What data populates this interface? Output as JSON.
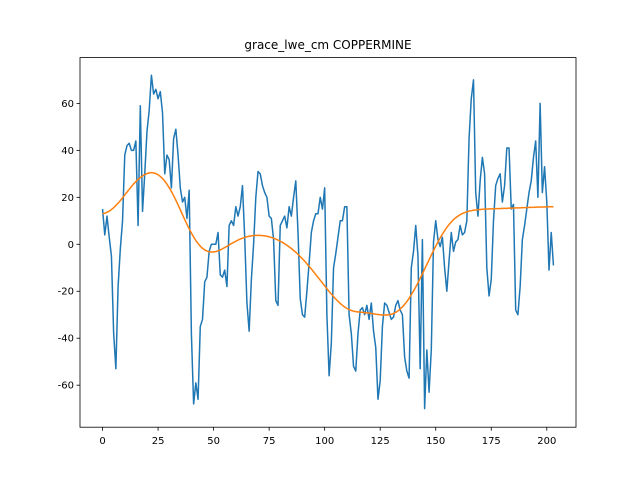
{
  "chart_data": {
    "type": "line",
    "title": "grace_lwe_cm COPPERMINE",
    "x": [
      0,
      1,
      2,
      3,
      4,
      5,
      6,
      7,
      8,
      9,
      10,
      11,
      12,
      13,
      14,
      15,
      16,
      17,
      18,
      19,
      20,
      21,
      22,
      23,
      24,
      25,
      26,
      27,
      28,
      29,
      30,
      31,
      32,
      33,
      34,
      35,
      36,
      37,
      38,
      39,
      40,
      41,
      42,
      43,
      44,
      45,
      46,
      47,
      48,
      49,
      50,
      51,
      52,
      53,
      54,
      55,
      56,
      57,
      58,
      59,
      60,
      61,
      62,
      63,
      64,
      65,
      66,
      67,
      68,
      69,
      70,
      71,
      72,
      73,
      74,
      75,
      76,
      77,
      78,
      79,
      80,
      81,
      82,
      83,
      84,
      85,
      86,
      87,
      88,
      89,
      90,
      91,
      92,
      93,
      94,
      95,
      96,
      97,
      98,
      99,
      100,
      101,
      102,
      103,
      104,
      105,
      106,
      107,
      108,
      109,
      110,
      111,
      112,
      113,
      114,
      115,
      116,
      117,
      118,
      119,
      120,
      121,
      122,
      123,
      124,
      125,
      126,
      127,
      128,
      129,
      130,
      131,
      132,
      133,
      134,
      135,
      136,
      137,
      138,
      139,
      140,
      141,
      142,
      143,
      144,
      145,
      146,
      147,
      148,
      149,
      150,
      151,
      152,
      153,
      154,
      155,
      156,
      157,
      158,
      159,
      160,
      161,
      162,
      163,
      164,
      165,
      166,
      167,
      168,
      169,
      170,
      171,
      172,
      173,
      174,
      175,
      176,
      177,
      178,
      179,
      180,
      181,
      182,
      183,
      184,
      185,
      186,
      187,
      188,
      189,
      190,
      191,
      192,
      193,
      194,
      195,
      196,
      197,
      198,
      199,
      200,
      201,
      202,
      203
    ],
    "series": [
      {
        "color": "#1f77b4",
        "values": [
          15,
          4,
          12,
          3,
          -5,
          -38,
          -53,
          -18,
          -2,
          10,
          38,
          42,
          43,
          40,
          40,
          44,
          8,
          59,
          14,
          30,
          48,
          57,
          72,
          64,
          66,
          62,
          65,
          56,
          30,
          38,
          36,
          24,
          45,
          49,
          38,
          24,
          18,
          20,
          11,
          23,
          -38,
          -68,
          -59,
          -66,
          -35,
          -32,
          -16,
          -14,
          -3,
          0,
          0,
          0,
          5,
          -13,
          -14,
          -11,
          -18,
          8,
          10,
          8,
          16,
          12,
          16,
          25,
          3,
          -25,
          -37,
          -15,
          0,
          20,
          31,
          30,
          25,
          22,
          20,
          12,
          11,
          2,
          -24,
          -26,
          8,
          10,
          12,
          7,
          16,
          12,
          20,
          27,
          5,
          -23,
          -30,
          -31,
          -20,
          -8,
          5,
          10,
          13,
          13,
          20,
          15,
          24,
          -30,
          -56,
          -42,
          -10,
          -4,
          3,
          10,
          10,
          16,
          16,
          -30,
          -38,
          -52,
          -54,
          -38,
          -28,
          -27,
          -30,
          -26,
          -32,
          -25,
          -37,
          -44,
          -66,
          -58,
          -35,
          -25,
          -26,
          -29,
          -32,
          -31,
          -26,
          -24,
          -28,
          -30,
          -48,
          -54,
          -57,
          -10,
          -3,
          8,
          -5,
          -53,
          2,
          -70,
          -45,
          -63,
          -45,
          1,
          10,
          2,
          -1,
          3,
          -10,
          -20,
          -7,
          5,
          -3,
          1,
          2,
          8,
          4,
          5,
          10,
          45,
          62,
          70,
          22,
          12,
          27,
          37,
          30,
          -10,
          -22,
          -15,
          10,
          25,
          28,
          30,
          18,
          25,
          41,
          41,
          15,
          17,
          -28,
          -30,
          -18,
          2,
          8,
          15,
          22,
          27,
          37,
          44,
          20,
          60,
          22,
          33,
          18,
          -11,
          5,
          -9
        ]
      },
      {
        "color": "#ff7f0e",
        "values": [
          13,
          13.2,
          13.6,
          14.1,
          14.8,
          15.6,
          16.5,
          17.5,
          18.6,
          19.8,
          21,
          22.2,
          23.4,
          24.6,
          25.7,
          26.7,
          27.6,
          28.4,
          29.1,
          29.7,
          30.1,
          30.4,
          30.5,
          30.4,
          30.1,
          29.6,
          28.9,
          28,
          26.9,
          25.6,
          24.1,
          22.5,
          20.7,
          18.8,
          16.8,
          14.7,
          12.6,
          10.5,
          8.5,
          6.6,
          4.8,
          3.1,
          1.6,
          0.3,
          -0.8,
          -1.7,
          -2.4,
          -2.9,
          -3.2,
          -3.3,
          -3.3,
          -3.1,
          -2.8,
          -2.4,
          -1.9,
          -1.4,
          -0.9,
          -0.3,
          0.3,
          0.8,
          1.3,
          1.8,
          2.2,
          2.6,
          2.9,
          3.2,
          3.4,
          3.6,
          3.7,
          3.8,
          3.8,
          3.8,
          3.7,
          3.6,
          3.4,
          3.2,
          2.9,
          2.6,
          2.2,
          1.8,
          1.3,
          0.8,
          0.2,
          -0.4,
          -1.1,
          -1.8,
          -2.6,
          -3.4,
          -4.3,
          -5.2,
          -6.2,
          -7.2,
          -8.3,
          -9.4,
          -10.5,
          -11.7,
          -12.9,
          -14.1,
          -15.3,
          -16.5,
          -17.7,
          -18.9,
          -20.1,
          -21.2,
          -22.3,
          -23.3,
          -24.3,
          -25.2,
          -26,
          -26.7,
          -27.3,
          -27.8,
          -28.2,
          -28.5,
          -28.7,
          -28.8,
          -28.9,
          -29,
          -29.1,
          -29.2,
          -29.3,
          -29.5,
          -29.6,
          -29.8,
          -29.9,
          -30,
          -30.1,
          -30.1,
          -30.1,
          -30,
          -29.8,
          -29.5,
          -29,
          -28.4,
          -27.6,
          -26.7,
          -25.6,
          -24.4,
          -23,
          -21.5,
          -19.9,
          -18.2,
          -16.4,
          -14.5,
          -12.6,
          -10.6,
          -8.6,
          -6.6,
          -4.6,
          -2.7,
          -0.8,
          1,
          2.7,
          4.3,
          5.8,
          7.2,
          8.4,
          9.5,
          10.5,
          11.3,
          12,
          12.6,
          13.1,
          13.5,
          13.8,
          14.1,
          14.3,
          14.5,
          14.6,
          14.7,
          14.8,
          14.9,
          15,
          15,
          15.1,
          15.1,
          15.1,
          15.2,
          15.2,
          15.2,
          15.3,
          15.3,
          15.3,
          15.4,
          15.4,
          15.4,
          15.5,
          15.5,
          15.5,
          15.6,
          15.6,
          15.6,
          15.7,
          15.7,
          15.7,
          15.8,
          15.8,
          15.8,
          15.9,
          15.9,
          15.9,
          16,
          16,
          16
        ]
      }
    ],
    "xlim": [
      -10.15,
      213.15
    ],
    "ylim": [
      -77.9,
      79.5
    ],
    "xticks": [
      0,
      25,
      50,
      75,
      100,
      125,
      150,
      175,
      200
    ],
    "yticks": [
      -60,
      -40,
      -20,
      0,
      20,
      40,
      60
    ],
    "grid": false
  }
}
